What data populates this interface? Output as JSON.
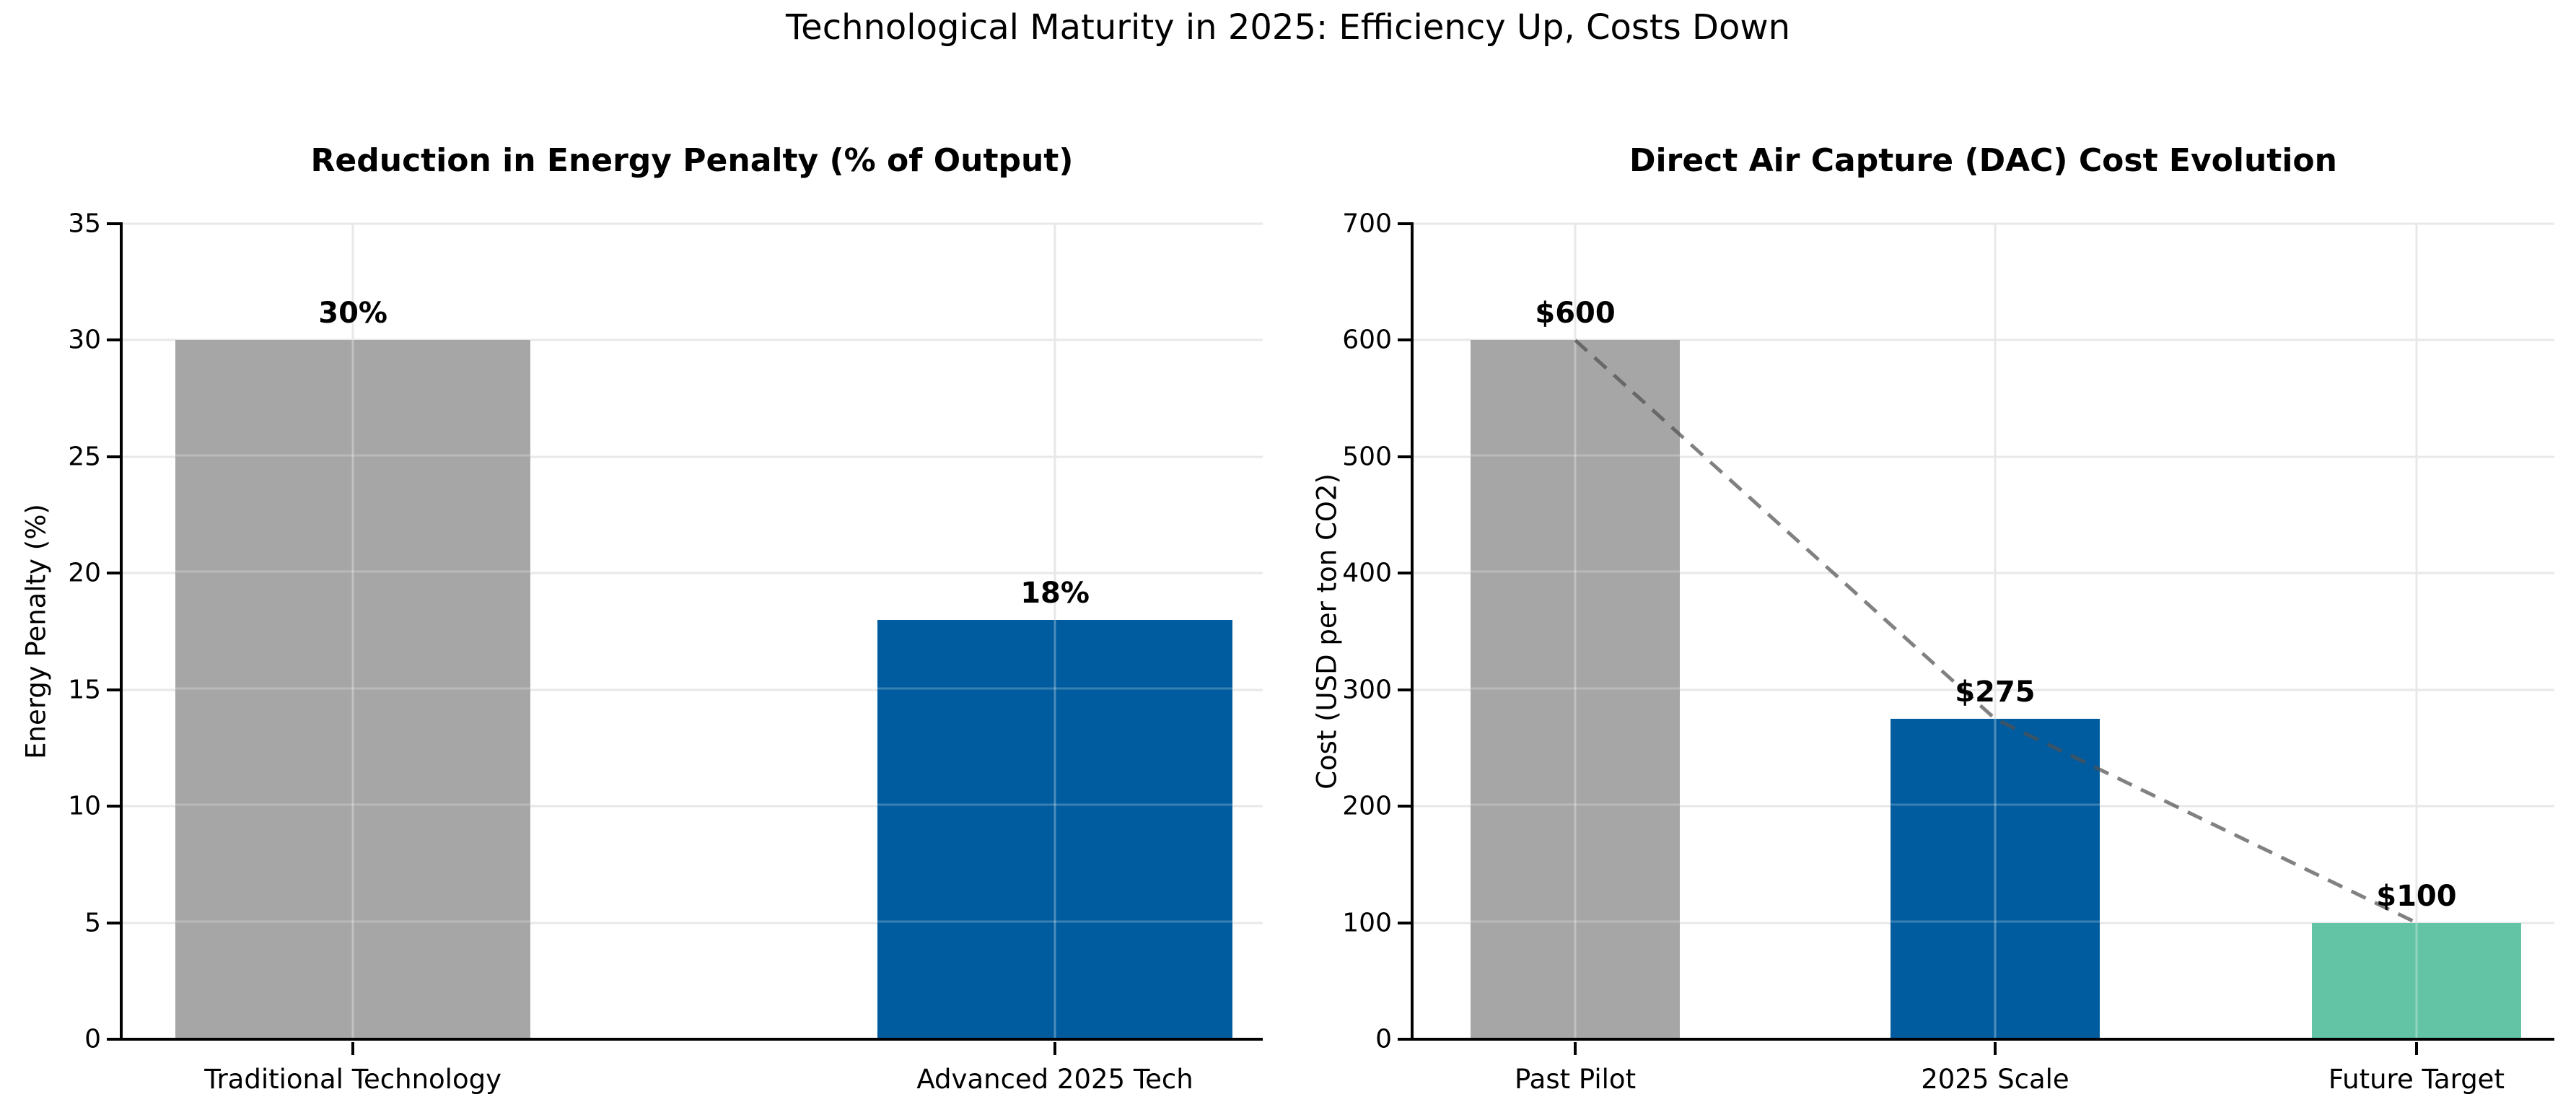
{
  "figure": {
    "title": "Technological Maturity in 2025: Efficiency Up, Costs Down"
  },
  "chart_data": [
    {
      "type": "bar",
      "title": "Reduction in Energy Penalty (% of Output)",
      "xlabel": "",
      "ylabel": "Energy Penalty (%)",
      "categories": [
        "Traditional Technology",
        "Advanced 2025 Tech"
      ],
      "values": [
        30,
        18
      ],
      "value_labels": [
        "30%",
        "18%"
      ],
      "bar_colors": [
        "#a6a6a6",
        "#005c9e"
      ],
      "ylim": [
        0,
        35
      ],
      "yticks": [
        0,
        5,
        10,
        15,
        20,
        25,
        30,
        35
      ],
      "grid": true,
      "legend": "none"
    },
    {
      "type": "bar",
      "title": "Direct Air Capture (DAC) Cost Evolution",
      "xlabel": "",
      "ylabel": "Cost (USD per ton CO2)",
      "categories": [
        "Past Pilot",
        "2025 Scale",
        "Future Target"
      ],
      "values": [
        600,
        275,
        100
      ],
      "value_labels": [
        "$600",
        "$275",
        "$100"
      ],
      "bar_colors": [
        "#a6a6a6",
        "#005c9e",
        "#62c3a5"
      ],
      "ylim": [
        0,
        700
      ],
      "yticks": [
        0,
        100,
        200,
        300,
        400,
        500,
        600,
        700
      ],
      "grid": true,
      "legend": "none",
      "trend_line": {
        "style": "dashed",
        "color": "rgba(80,80,80,0.72)",
        "values": [
          600,
          275,
          100
        ],
        "connects": "bar tops"
      }
    }
  ]
}
